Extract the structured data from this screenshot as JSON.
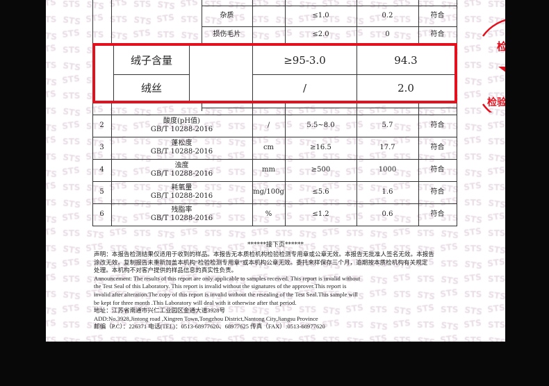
{
  "watermark": "STS",
  "table": {
    "top_rows": [
      {
        "subitem": "杂质",
        "requirement": "≤1.0",
        "result": "0.2",
        "verdict": "符合"
      },
      {
        "subitem": "损伤毛片",
        "requirement": "≤2.0",
        "result": "0",
        "verdict": "符合"
      }
    ],
    "highlight_rows": [
      {
        "item": "绒子含量",
        "requirement": "≥95-3.0",
        "result": "94.3"
      },
      {
        "item": "绒丝",
        "requirement": "/",
        "result": "2.0"
      }
    ],
    "rows": [
      {
        "no": "2",
        "item": "酸度(pH值)",
        "standard": "GB/T 10288-2016",
        "unit": "/",
        "requirement": "5.5~8.0",
        "result": "5.7",
        "verdict": "符合"
      },
      {
        "no": "3",
        "item": "蓬松度",
        "standard": "GB/T 10288-2016",
        "unit": "cm",
        "requirement": "≥16.5",
        "result": "17.7",
        "verdict": "符合"
      },
      {
        "no": "4",
        "item": "浊度",
        "standard": "GB/T 10288-2016",
        "unit": "mm",
        "requirement": "≥500",
        "result": "1000",
        "verdict": "符合"
      },
      {
        "no": "5",
        "item": "耗氧量",
        "standard": "GB/T 10288-2016",
        "unit": "mg/100g",
        "requirement": "≤5.6",
        "result": "1.6",
        "verdict": "符合"
      },
      {
        "no": "6",
        "item": "残脂率",
        "standard": "GB/T 10288-2016",
        "unit": "%",
        "requirement": "≤1.2",
        "result": "0.6",
        "verdict": "符合"
      }
    ]
  },
  "continued": "******接下页******",
  "notes": [
    "声明：本报告检测结果仅适用于收到的样品。本报告无本质检机构检验检测专用章或公章无效。本报告无批准人签名无效。本报告",
    "涂改无效。复制报告未重新加盖本机构“检验检测专用章”或本机构公章无效。委托来样保存三个月，逾期按本质检机构有关规定",
    "处理。本机构不对客户提供的样品信息的真实性负责。",
    "Announcement: The results of this report are only applicable to samples received. This report is invalid without",
    "the Test Seal of this Laboratory. This report is invalid without the signatures of the approver.This report is",
    "invalid after alteration.The copy of this report is invalid without the resealing of the Test Seal.This sample will",
    "be kept for three month .This Laboratory will deal with it otherwise after that period.",
    "地址：江苏省南通市兴仁工业园区金通大道3928号",
    "ADD:No.3928,Jintong road ,Xingren Town,Tongzhou District,Nantong City,Jiangsu Province",
    "邮编（P.C）：226371   电话(TEL)：0513-68977620、68977625   传真（FAX）:0513-68977620"
  ],
  "stamp": {
    "top_text": "检测标准",
    "bottom_text": "检验检测专用",
    "color": "#e3101e"
  }
}
